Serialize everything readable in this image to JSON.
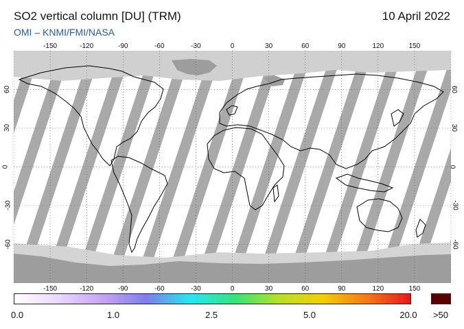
{
  "header": {
    "title": "SO2 vertical column [DU] (TRM)",
    "date": "10 April 2022",
    "credits": "OMI  –  KNMI/FMI/NASA"
  },
  "map": {
    "projection": "equirectangular",
    "lon_ticks": [
      "-150",
      "-120",
      "-90",
      "-60",
      "-30",
      "0",
      "30",
      "60",
      "90",
      "120",
      "150"
    ],
    "lat_ticks": [
      "60",
      "30",
      "0",
      "-30",
      "-60"
    ],
    "gridlines": true,
    "colors": {
      "background_no_data": "#d0d0d0",
      "swath": "#ffffff",
      "swath_gap": "#a9a9a9",
      "polar": "#9f9f9f",
      "coastline": "#000000"
    }
  },
  "colorbar": {
    "labels": [
      "0.0",
      "1.0",
      "2.5",
      "5.0",
      "20.0",
      ">50"
    ],
    "colors": [
      "#ffffff",
      "#ead8ff",
      "#c7a4f0",
      "#7e7ee8",
      "#29e5f0",
      "#37e17b",
      "#b7e02a",
      "#f2cf08",
      "#f27a1a",
      "#e6191b"
    ],
    "max_color": "#5a0000"
  }
}
